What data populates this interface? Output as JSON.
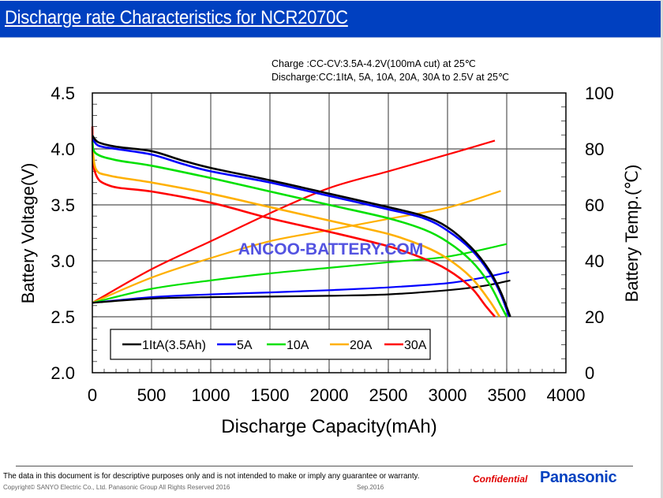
{
  "header": {
    "title": "Discharge rate Characteristics for NCR2070C"
  },
  "conditions": {
    "charge": "Charge :CC-CV:3.5A-4.2V(100mA cut) at 25℃",
    "discharge": "Discharge:CC:1ItA, 5A, 10A, 20A, 30A to 2.5V at  25℃"
  },
  "watermark": "ANCOO-BATTERY.COM",
  "footer": {
    "disclaimer": "The data in this document is for descriptive purposes only and is not intended to make or imply any guarantee or warranty.",
    "copyright": "Copyright© SANYO Electric Co., Ltd. Panasonic Group All Rights Reserved 2016",
    "date": "Sep.2016",
    "confidential": "Confidential",
    "brand": "Panasonic"
  },
  "chart_data": {
    "type": "line",
    "title": "Discharge rate Characteristics for NCR2070C",
    "xlabel": "Discharge Capacity(mAh)",
    "ylabel": "Battery Voltage(V)",
    "y2label": "Battery Temp.(℃)",
    "xlim": [
      0,
      4000
    ],
    "ylim": [
      2.0,
      4.5
    ],
    "y2lim": [
      0,
      100
    ],
    "xticks": [
      "0",
      "500",
      "1000",
      "1500",
      "2000",
      "2500",
      "3000",
      "3500",
      "4000"
    ],
    "yticks": [
      "2.0",
      "2.5",
      "3.0",
      "3.5",
      "4.0",
      "4.5"
    ],
    "y2ticks": [
      "0",
      "20",
      "40",
      "60",
      "80",
      "100"
    ],
    "grid": true,
    "legend_position": "bottom-left",
    "series": [
      {
        "name": "1ItA(3.5Ah)",
        "color": "#000000",
        "voltage": [
          [
            0,
            4.12
          ],
          [
            50,
            4.06
          ],
          [
            200,
            4.02
          ],
          [
            500,
            3.98
          ],
          [
            750,
            3.9
          ],
          [
            1000,
            3.83
          ],
          [
            1500,
            3.72
          ],
          [
            2000,
            3.6
          ],
          [
            2500,
            3.48
          ],
          [
            2800,
            3.4
          ],
          [
            3000,
            3.3
          ],
          [
            3200,
            3.12
          ],
          [
            3350,
            2.92
          ],
          [
            3450,
            2.72
          ],
          [
            3530,
            2.5
          ]
        ],
        "temperature": [
          [
            0,
            25
          ],
          [
            500,
            26.5
          ],
          [
            1000,
            27
          ],
          [
            1500,
            27.2
          ],
          [
            2000,
            27.5
          ],
          [
            2500,
            28
          ],
          [
            3000,
            29.5
          ],
          [
            3300,
            31
          ],
          [
            3530,
            33
          ]
        ]
      },
      {
        "name": "5A",
        "color": "#0000ff",
        "voltage": [
          [
            0,
            4.1
          ],
          [
            50,
            4.03
          ],
          [
            200,
            4.0
          ],
          [
            500,
            3.95
          ],
          [
            750,
            3.87
          ],
          [
            1000,
            3.8
          ],
          [
            1500,
            3.7
          ],
          [
            2000,
            3.58
          ],
          [
            2500,
            3.46
          ],
          [
            2800,
            3.38
          ],
          [
            3000,
            3.27
          ],
          [
            3200,
            3.1
          ],
          [
            3350,
            2.9
          ],
          [
            3450,
            2.7
          ],
          [
            3520,
            2.5
          ]
        ],
        "temperature": [
          [
            0,
            25
          ],
          [
            500,
            27
          ],
          [
            1000,
            28
          ],
          [
            1500,
            28.7
          ],
          [
            2000,
            29.5
          ],
          [
            2500,
            30.5
          ],
          [
            3000,
            32
          ],
          [
            3300,
            34
          ],
          [
            3520,
            36
          ]
        ]
      },
      {
        "name": "10A",
        "color": "#00e000",
        "voltage": [
          [
            0,
            4.07
          ],
          [
            30,
            3.96
          ],
          [
            200,
            3.9
          ],
          [
            500,
            3.85
          ],
          [
            1000,
            3.74
          ],
          [
            1500,
            3.62
          ],
          [
            2000,
            3.5
          ],
          [
            2500,
            3.38
          ],
          [
            2800,
            3.28
          ],
          [
            3000,
            3.17
          ],
          [
            3200,
            3.0
          ],
          [
            3350,
            2.8
          ],
          [
            3450,
            2.6
          ],
          [
            3500,
            2.5
          ]
        ],
        "temperature": [
          [
            0,
            25
          ],
          [
            500,
            30
          ],
          [
            1000,
            33
          ],
          [
            1500,
            35.5
          ],
          [
            2000,
            37.5
          ],
          [
            2500,
            39.5
          ],
          [
            3000,
            41.5
          ],
          [
            3500,
            46
          ]
        ]
      },
      {
        "name": "20A",
        "color": "#ffb000",
        "voltage": [
          [
            0,
            4.05
          ],
          [
            30,
            3.82
          ],
          [
            150,
            3.76
          ],
          [
            500,
            3.7
          ],
          [
            1000,
            3.6
          ],
          [
            1500,
            3.48
          ],
          [
            2000,
            3.36
          ],
          [
            2500,
            3.24
          ],
          [
            2800,
            3.13
          ],
          [
            3000,
            3.02
          ],
          [
            3200,
            2.85
          ],
          [
            3350,
            2.65
          ],
          [
            3440,
            2.5
          ]
        ],
        "temperature": [
          [
            0,
            25
          ],
          [
            500,
            34
          ],
          [
            1000,
            41
          ],
          [
            1500,
            47
          ],
          [
            2000,
            51
          ],
          [
            2500,
            55
          ],
          [
            3000,
            59
          ],
          [
            3450,
            65
          ]
        ]
      },
      {
        "name": "30A",
        "color": "#ff0000",
        "voltage": [
          [
            0,
            4.2
          ],
          [
            20,
            3.8
          ],
          [
            150,
            3.67
          ],
          [
            500,
            3.62
          ],
          [
            1000,
            3.52
          ],
          [
            1500,
            3.38
          ],
          [
            2000,
            3.26
          ],
          [
            2500,
            3.13
          ],
          [
            2800,
            3.02
          ],
          [
            3000,
            2.92
          ],
          [
            3200,
            2.76
          ],
          [
            3320,
            2.6
          ],
          [
            3400,
            2.5
          ]
        ],
        "temperature": [
          [
            0,
            25
          ],
          [
            500,
            37
          ],
          [
            1000,
            47
          ],
          [
            1500,
            57
          ],
          [
            2000,
            66
          ],
          [
            2500,
            72
          ],
          [
            3000,
            78
          ],
          [
            3400,
            83
          ]
        ]
      }
    ]
  }
}
